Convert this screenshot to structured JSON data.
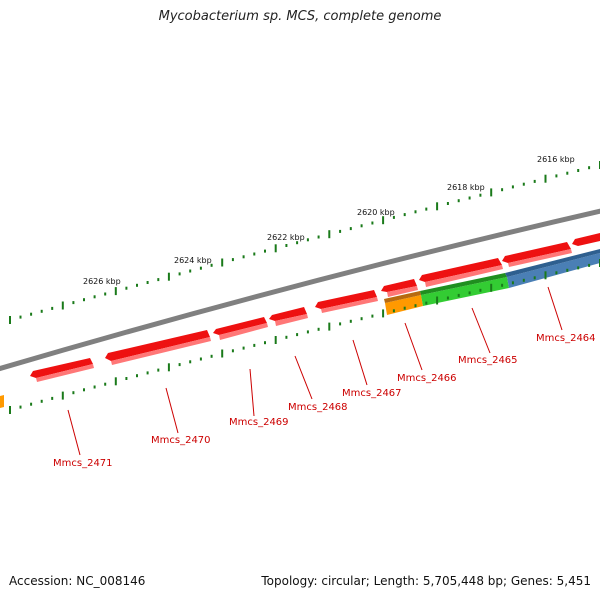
{
  "title": "Mycobacterium sp. MCS, complete genome",
  "footer": {
    "accession": "Accession: NC_008146",
    "summary": "Topology: circular; Length: 5,705,448 bp; Genes: 5,451"
  },
  "scale_labels": [
    "2616 kbp",
    "2618 kbp",
    "2620 kbp",
    "2622 kbp",
    "2624 kbp",
    "2626 kbp"
  ],
  "gene_labels": [
    "Mmcs_2464",
    "Mmcs_2465",
    "Mmcs_2466",
    "Mmcs_2467",
    "Mmcs_2468",
    "Mmcs_2469",
    "Mmcs_2470",
    "Mmcs_2471"
  ],
  "colors": {
    "backbone": "#808080",
    "forward_gene": "#ee1111",
    "label": "#cc0000",
    "tick": "#1a7a1a",
    "green_feature": "#33cc33",
    "blue_feature": "#4a7fb5",
    "orange_feature": "#ff9900"
  }
}
